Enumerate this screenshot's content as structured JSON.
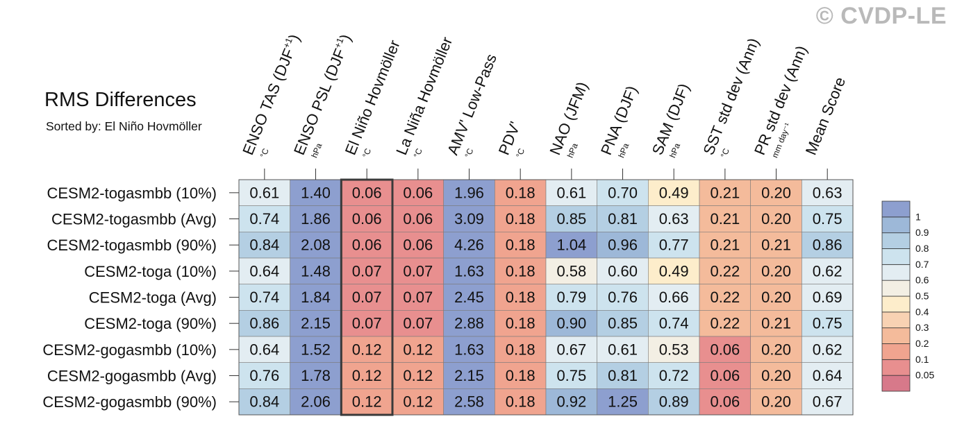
{
  "watermark": "© CVDP-LE",
  "chart_data": {
    "type": "heatmap",
    "title": "RMS Differences",
    "subtitle": "Sorted by: El Niño Hovmöller",
    "columns": [
      {
        "label": "ENSO TAS (DJF",
        "sup": "+1",
        "tail": ")",
        "unit": "°C"
      },
      {
        "label": "ENSO PSL (DJF",
        "sup": "+1",
        "tail": ")",
        "unit": "hPa"
      },
      {
        "label": "El Niño Hovmöller",
        "sup": "",
        "tail": "",
        "unit": "°C"
      },
      {
        "label": "La Niña Hovmöller",
        "sup": "",
        "tail": "",
        "unit": "°C"
      },
      {
        "label": "AMV' Low-Pass",
        "sup": "",
        "tail": "",
        "unit": "°C"
      },
      {
        "label": "PDV'",
        "sup": "",
        "tail": "",
        "unit": "°C"
      },
      {
        "label": "NAO (JFM)",
        "sup": "",
        "tail": "",
        "unit": "hPa"
      },
      {
        "label": "PNA (DJF)",
        "sup": "",
        "tail": "",
        "unit": "hPa"
      },
      {
        "label": "SAM (DJF)",
        "sup": "",
        "tail": "",
        "unit": "hPa"
      },
      {
        "label": "SST std dev (Ann)",
        "sup": "",
        "tail": "",
        "unit": "°C"
      },
      {
        "label": "PR std dev (Ann)",
        "sup": "",
        "tail": "",
        "unit": "mm day⁻¹"
      },
      {
        "label": "Mean Score",
        "sup": "",
        "tail": "",
        "unit": ""
      }
    ],
    "rows": [
      "CESM2-togasmbb (10%)",
      "CESM2-togasmbb (Avg)",
      "CESM2-togasmbb (90%)",
      "CESM2-toga (10%)",
      "CESM2-toga (Avg)",
      "CESM2-toga (90%)",
      "CESM2-gogasmbb (10%)",
      "CESM2-gogasmbb (Avg)",
      "CESM2-gogasmbb (90%)"
    ],
    "values": [
      [
        0.61,
        1.4,
        0.06,
        0.06,
        1.96,
        0.18,
        0.61,
        0.7,
        0.49,
        0.21,
        0.2,
        0.63
      ],
      [
        0.74,
        1.86,
        0.06,
        0.06,
        3.09,
        0.18,
        0.85,
        0.81,
        0.63,
        0.21,
        0.2,
        0.75
      ],
      [
        0.84,
        2.08,
        0.06,
        0.06,
        4.26,
        0.18,
        1.04,
        0.96,
        0.77,
        0.21,
        0.21,
        0.86
      ],
      [
        0.64,
        1.48,
        0.07,
        0.07,
        1.63,
        0.18,
        0.58,
        0.6,
        0.49,
        0.22,
        0.2,
        0.62
      ],
      [
        0.74,
        1.84,
        0.07,
        0.07,
        2.45,
        0.18,
        0.79,
        0.76,
        0.66,
        0.22,
        0.2,
        0.69
      ],
      [
        0.86,
        2.15,
        0.07,
        0.07,
        2.88,
        0.18,
        0.9,
        0.85,
        0.74,
        0.22,
        0.21,
        0.75
      ],
      [
        0.64,
        1.52,
        0.12,
        0.12,
        1.63,
        0.18,
        0.67,
        0.61,
        0.53,
        0.06,
        0.2,
        0.62
      ],
      [
        0.76,
        1.78,
        0.12,
        0.12,
        2.15,
        0.18,
        0.75,
        0.81,
        0.72,
        0.06,
        0.2,
        0.64
      ],
      [
        0.84,
        2.06,
        0.12,
        0.12,
        2.58,
        0.18,
        0.92,
        1.25,
        0.89,
        0.06,
        0.2,
        0.67
      ]
    ],
    "display_values": [
      [
        "0.61",
        "1.40",
        "0.06",
        "0.06",
        "1.96",
        "0.18",
        "0.61",
        "0.70",
        "0.49",
        "0.21",
        "0.20",
        "0.63"
      ],
      [
        "0.74",
        "1.86",
        "0.06",
        "0.06",
        "3.09",
        "0.18",
        "0.85",
        "0.81",
        "0.63",
        "0.21",
        "0.20",
        "0.75"
      ],
      [
        "0.84",
        "2.08",
        "0.06",
        "0.06",
        "4.26",
        "0.18",
        "1.04",
        "0.96",
        "0.77",
        "0.21",
        "0.21",
        "0.86"
      ],
      [
        "0.64",
        "1.48",
        "0.07",
        "0.07",
        "1.63",
        "0.18",
        "0.58",
        "0.60",
        "0.49",
        "0.22",
        "0.20",
        "0.62"
      ],
      [
        "0.74",
        "1.84",
        "0.07",
        "0.07",
        "2.45",
        "0.18",
        "0.79",
        "0.76",
        "0.66",
        "0.22",
        "0.20",
        "0.69"
      ],
      [
        "0.86",
        "2.15",
        "0.07",
        "0.07",
        "2.88",
        "0.18",
        "0.90",
        "0.85",
        "0.74",
        "0.22",
        "0.21",
        "0.75"
      ],
      [
        "0.64",
        "1.52",
        "0.12",
        "0.12",
        "1.63",
        "0.18",
        "0.67",
        "0.61",
        "0.53",
        "0.06",
        "0.20",
        "0.62"
      ],
      [
        "0.76",
        "1.78",
        "0.12",
        "0.12",
        "2.15",
        "0.18",
        "0.75",
        "0.81",
        "0.72",
        "0.06",
        "0.20",
        "0.64"
      ],
      [
        "0.84",
        "2.06",
        "0.12",
        "0.12",
        "2.58",
        "0.18",
        "0.92",
        "1.25",
        "0.89",
        "0.06",
        "0.20",
        "0.67"
      ]
    ],
    "highlighted_column": "El Niño Hovmöller",
    "colorbar": {
      "boundaries": [
        0.05,
        0.1,
        0.2,
        0.3,
        0.4,
        0.5,
        0.6,
        0.7,
        0.8,
        0.9,
        1
      ],
      "labels": [
        "0.05",
        "0.1",
        "0.2",
        "0.3",
        "0.4",
        "0.5",
        "0.6",
        "0.7",
        "0.8",
        "0.9",
        "1"
      ],
      "colors": [
        "#d7798a",
        "#e88f8f",
        "#f0a48f",
        "#f4bb9b",
        "#f8d2b3",
        "#fdedcb",
        "#f3efe4",
        "#e3edf2",
        "#cde3ee",
        "#b4cfe3",
        "#9db8d8",
        "#8d9fcf"
      ]
    }
  }
}
